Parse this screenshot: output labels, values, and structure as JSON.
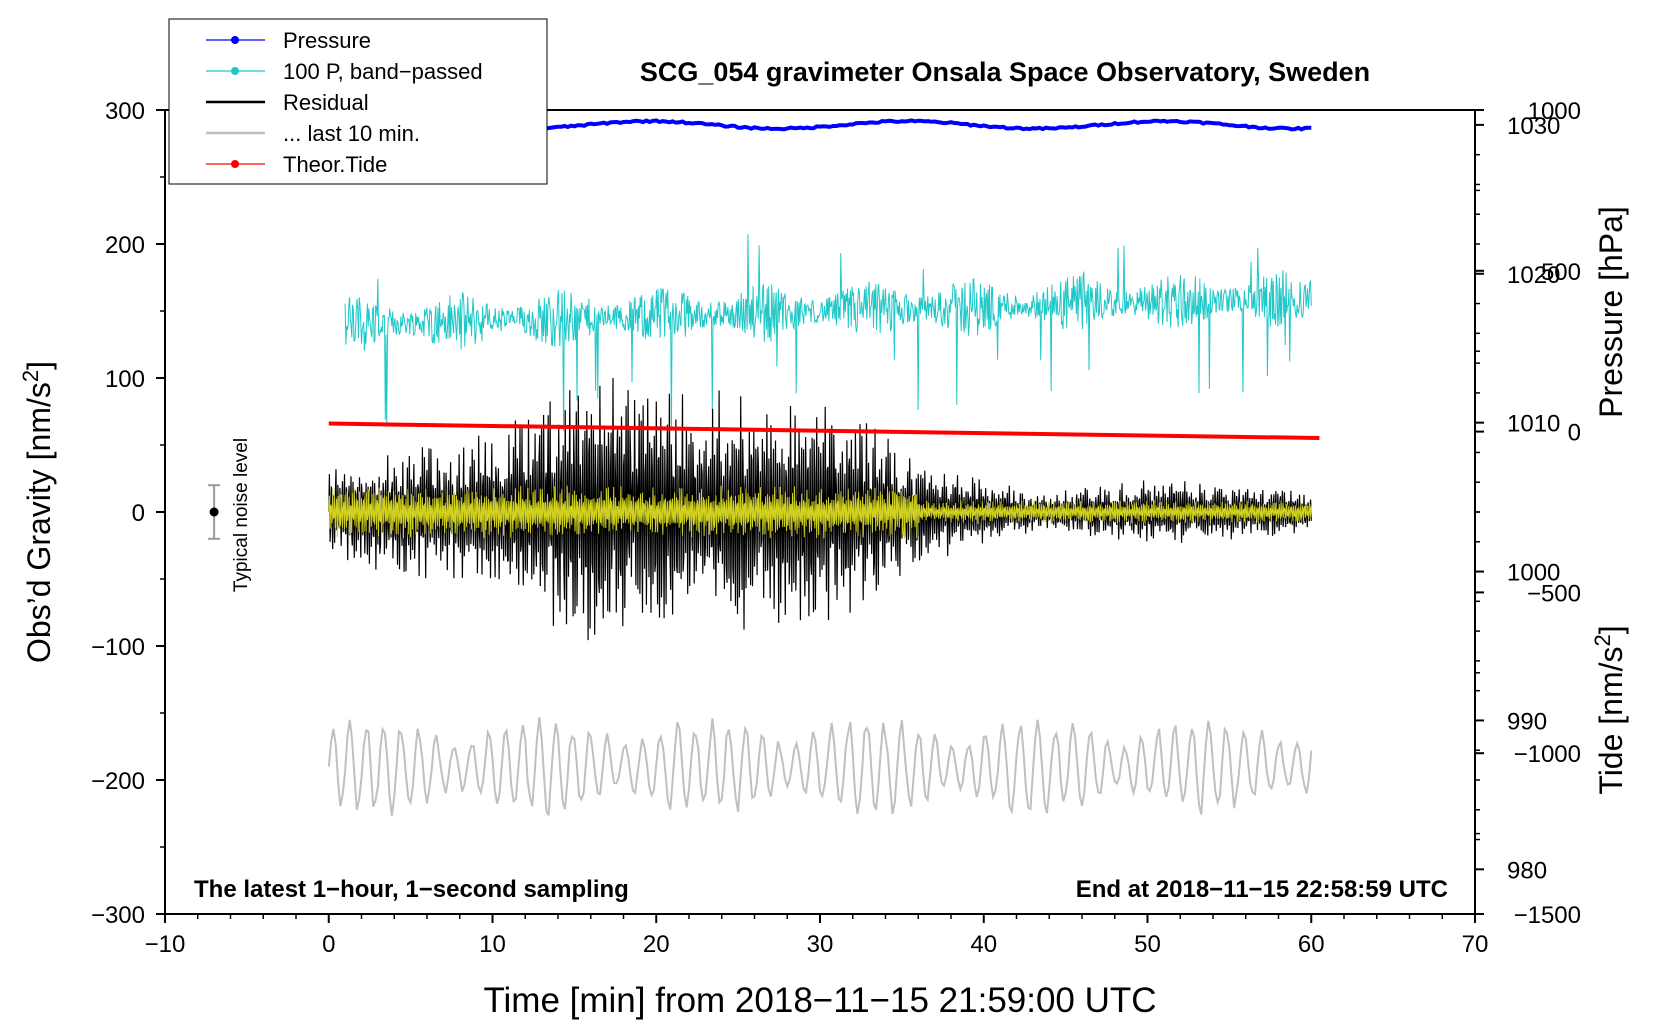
{
  "chart_data": {
    "type": "line",
    "title": "SCG_054 gravimeter Onsala Space Observatory, Sweden",
    "xlabel": "Time [min] from 2018−11−15 21:59:00 UTC",
    "ylabel_left": "Obs’d Gravity [nm/s",
    "ylabel_left_sup": "2",
    "ylabel_left_close": "]",
    "ylabel_right_pressure": "Pressure [hPa]",
    "ylabel_right_tide": "Tide [nm/s",
    "ylabel_right_tide_sup": "2",
    "ylabel_right_tide_close": "]",
    "xlim": [
      -10,
      70
    ],
    "ylim_left": [
      -300,
      300
    ],
    "pressure_axis": {
      "range": [
        977,
        1031
      ],
      "ticks": [
        980,
        990,
        1000,
        1010,
        1020,
        1030
      ],
      "labels": [
        "980",
        "990",
        "1000",
        "1010",
        "1020",
        "1030"
      ]
    },
    "tide_axis": {
      "range": [
        -1500,
        1000
      ],
      "ticks": [
        -1500,
        -1000,
        -500,
        0,
        500,
        1000
      ],
      "labels": [
        "−1500",
        "−1000",
        "−500",
        "0",
        "500",
        "1000"
      ]
    },
    "xticks": [
      -10,
      0,
      10,
      20,
      30,
      40,
      50,
      60,
      70
    ],
    "xtick_labels": [
      "−10",
      "0",
      "10",
      "20",
      "30",
      "40",
      "50",
      "60",
      "70"
    ],
    "yticks_left": [
      -300,
      -200,
      -100,
      0,
      100,
      200,
      300
    ],
    "ytick_labels_left": [
      "−300",
      "−200",
      "−100",
      "0",
      "100",
      "200",
      "300"
    ],
    "legend": [
      {
        "label": "Pressure",
        "color": "#0000ff",
        "marker": true
      },
      {
        "label": "100 P, band−passed",
        "color": "#20c8c8",
        "marker": true
      },
      {
        "label": "Residual",
        "color": "#000000",
        "marker": false
      },
      {
        "label": "... last 10 min.",
        "color": "#c0c0c0",
        "marker": false
      },
      {
        "label": "Theor.Tide",
        "color": "#ff0000",
        "marker": true
      }
    ],
    "series": [
      {
        "name": "Pressure",
        "axis": "pressure",
        "color": "#0000ff",
        "x_range": [
          0,
          60
        ],
        "approx_value": 1030,
        "style": "flat"
      },
      {
        "name": "100 P, band−passed",
        "axis": "left",
        "color": "#20c8c8",
        "x_range": [
          1,
          60
        ],
        "start_level": 140,
        "end_level": 160,
        "amplitude": 22
      },
      {
        "name": "Residual",
        "axis": "left",
        "color": "#000000",
        "x_range": [
          0,
          60
        ],
        "center": 0,
        "amplitude_envelope": [
          [
            0,
            40
          ],
          [
            10,
            60
          ],
          [
            16,
            110
          ],
          [
            19,
            95
          ],
          [
            27,
            90
          ],
          [
            32,
            80
          ],
          [
            36,
            40
          ],
          [
            43,
            15
          ],
          [
            50,
            25
          ],
          [
            58,
            20
          ],
          [
            60,
            15
          ]
        ]
      },
      {
        "name": "Residual filtered",
        "axis": "left",
        "color": "#d0d020",
        "x_range": [
          0,
          60
        ],
        "center": 0,
        "amplitude": 20
      },
      {
        "name": "... last 10 min.",
        "axis": "left",
        "color": "#c0c0c0",
        "x_range": [
          0,
          60
        ],
        "center": -190,
        "amplitude": 40
      },
      {
        "name": "Theor.Tide",
        "axis": "tide",
        "color": "#ff0000",
        "x_range": [
          0,
          60.5
        ],
        "start_value": 25,
        "end_value": -20
      }
    ],
    "noise_marker": {
      "x": -7,
      "y": 0,
      "err": 20,
      "label": "Typical noise level"
    },
    "annotations": {
      "bottom_left": "The latest 1−hour, 1−second sampling",
      "bottom_right": "End at 2018−11−15 22:58:59 UTC"
    }
  }
}
